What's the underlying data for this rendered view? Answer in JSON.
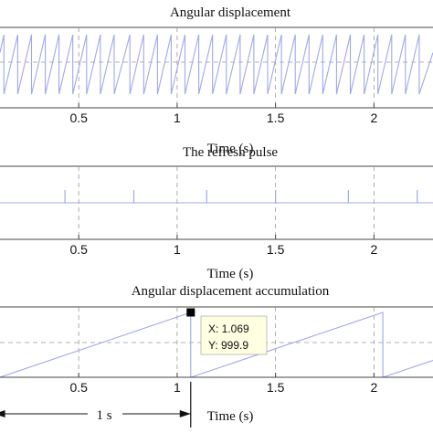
{
  "chart_data": [
    {
      "type": "line",
      "title": "Angular displacement",
      "xlabel": "Time (s)",
      "ylabel": "",
      "xlim": [
        0.1,
        2.3
      ],
      "x_ticks": [
        0.5,
        1,
        1.5,
        2
      ],
      "x_tick_labels": [
        "0.5",
        "1",
        "1.5",
        "2"
      ],
      "grid": true,
      "series": [
        {
          "x": [
            0.1,
            0.12,
            0.12,
            0.19,
            0.19,
            0.26,
            0.26,
            0.33,
            0.33,
            0.4,
            0.4,
            0.47,
            0.47,
            0.54,
            0.54,
            0.61,
            0.61,
            0.68,
            0.68,
            0.76,
            0.76,
            0.83,
            0.83,
            0.9,
            0.9,
            0.97,
            0.97,
            1.04,
            1.04,
            1.11,
            1.11,
            1.18,
            1.18,
            1.25,
            1.25,
            1.32,
            1.32,
            1.39,
            1.39,
            1.46,
            1.46,
            1.53,
            1.53,
            1.6,
            1.6,
            1.67,
            1.67,
            1.74,
            1.74,
            1.81,
            1.81,
            1.88,
            1.88,
            1.95,
            1.95,
            2.02,
            2.02,
            2.09,
            2.09,
            2.16,
            2.16,
            2.23,
            2.23,
            2.3
          ],
          "y": [
            0.7,
            1,
            0,
            1,
            0,
            1,
            0,
            1,
            0,
            1,
            0,
            1,
            0,
            1,
            0,
            1,
            0,
            1,
            0,
            1,
            0,
            1,
            0,
            1,
            0,
            1,
            0,
            1,
            0,
            1,
            0,
            1,
            0,
            1,
            0,
            1,
            0,
            1,
            0,
            1,
            0,
            1,
            0,
            1,
            0,
            1,
            0,
            1,
            0,
            1,
            0,
            1,
            0,
            1,
            0,
            1,
            0,
            1,
            0,
            1,
            0,
            1,
            0,
            0.7
          ]
        }
      ]
    },
    {
      "type": "line",
      "title": "The refresh pulse",
      "xlabel": "Time (s)",
      "ylabel": "",
      "xlim": [
        0.1,
        2.3
      ],
      "x_ticks": [
        0.5,
        1,
        1.5,
        2
      ],
      "x_tick_labels": [
        "0.5",
        "1",
        "1.5",
        "2"
      ],
      "grid": true,
      "series": [
        {
          "pulse_times": [
            0.43,
            0.78,
            1.15,
            1.5,
            1.87,
            2.22
          ],
          "baseline": 0,
          "pulse_height": 1
        }
      ]
    },
    {
      "type": "line",
      "title": "Angular displacement accumulation",
      "xlabel": "Time (s)",
      "ylabel": "",
      "xlim": [
        0.1,
        2.3
      ],
      "x_ticks": [
        0.5,
        1,
        1.5,
        2
      ],
      "x_tick_labels": [
        "0.5",
        "1",
        "1.5",
        "2"
      ],
      "grid": true,
      "series": [
        {
          "x": [
            0.1,
            1.069,
            1.069,
            2.045,
            2.045,
            2.3
          ],
          "y": [
            0,
            999.9,
            0,
            1000,
            0,
            260
          ]
        }
      ],
      "datatip": {
        "x_label": "X: 1.069",
        "y_label": "Y: 999.9",
        "x": 1.069,
        "y": 999.9
      },
      "annotation": {
        "label": "1 s",
        "from": 0.07,
        "to": 1.069
      }
    }
  ]
}
